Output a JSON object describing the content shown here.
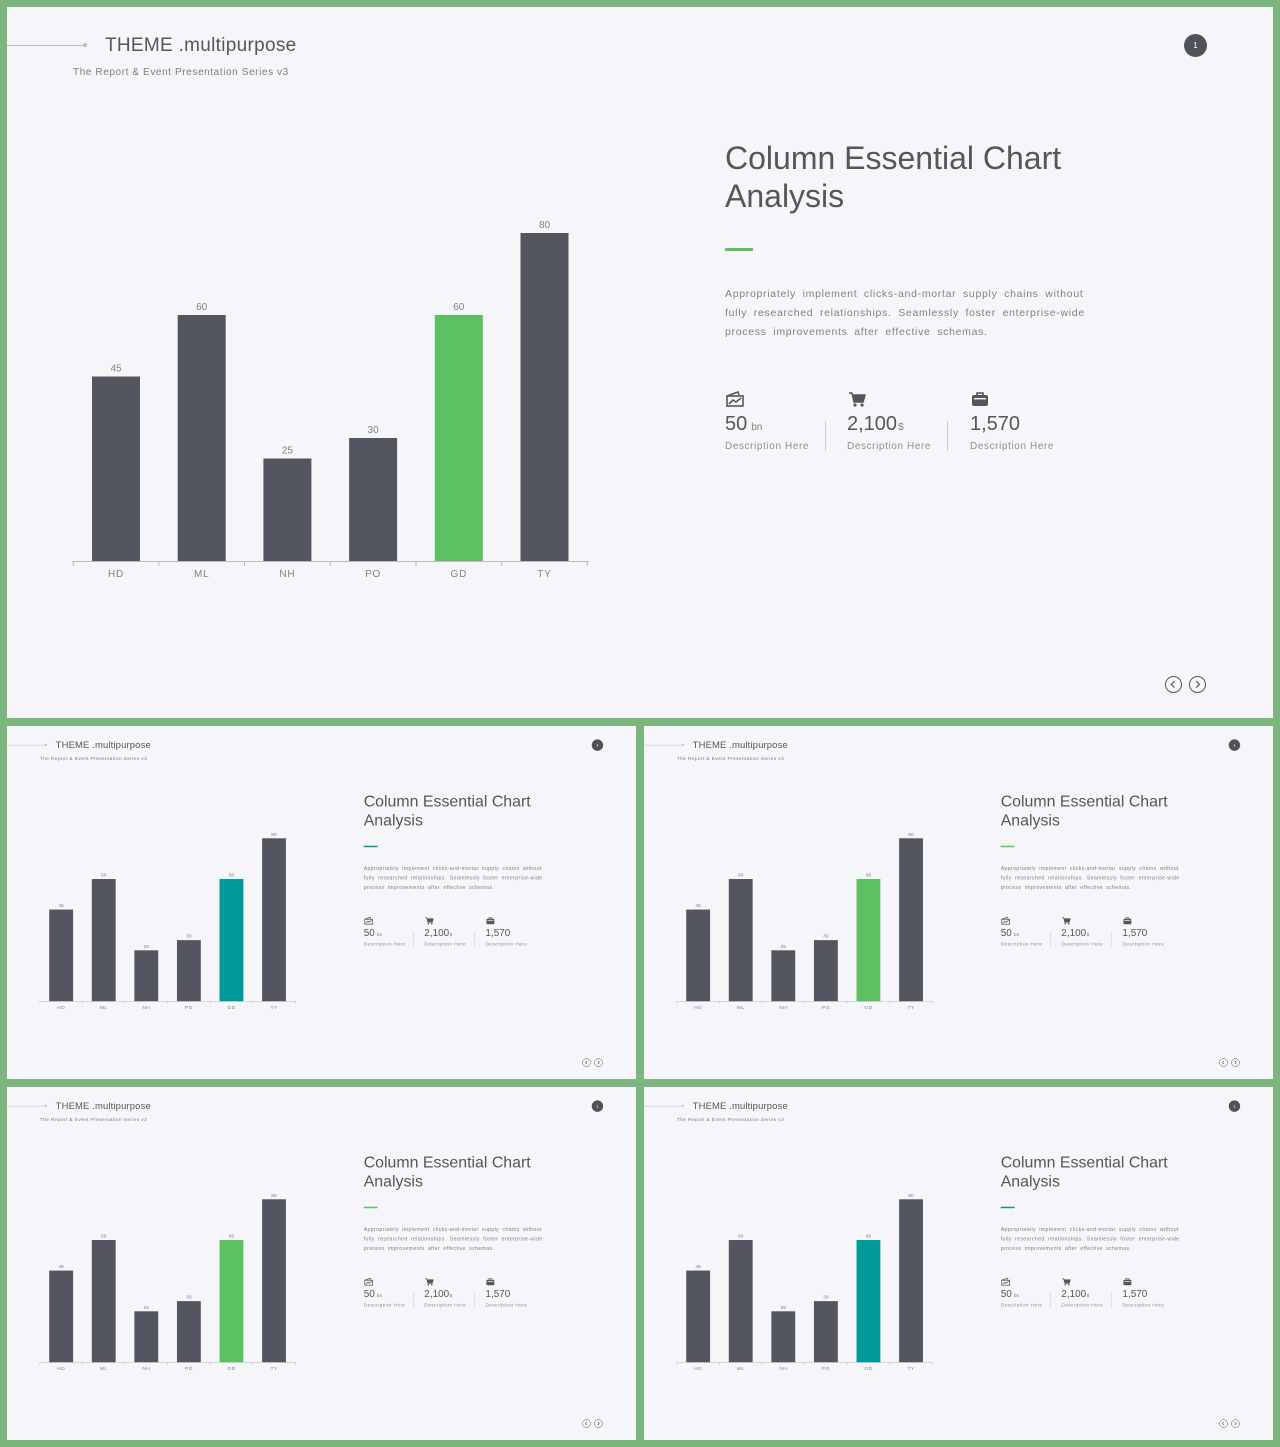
{
  "brand": {
    "title": "THEME .multipurpose",
    "subtitle": "The Report & Event Presentation Series v3"
  },
  "page_number": "1",
  "heading": "Column Essential Chart Analysis",
  "body": "Appropriately implement clicks-and-mortar supply chains without fully researched relationships. Seamlessly foster enterprise-wide process improvements after effective schemas.",
  "stats": [
    {
      "icon": "chart-card-icon",
      "value": "50",
      "unit": "bn",
      "description": "Description Here"
    },
    {
      "icon": "shopping-cart-icon",
      "value": "2,100",
      "unit": "$",
      "description": "Description Here"
    },
    {
      "icon": "briefcase-icon",
      "value": "1,570",
      "unit": "",
      "description": "Description Here"
    }
  ],
  "navigation": {
    "prev_icon": "chevron-left-icon",
    "next_icon": "chevron-right-icon"
  },
  "colors": {
    "background": "#7db57f",
    "slide": "#f6f6fa",
    "bar": "#53565f",
    "accent_green": "#5dc063",
    "accent_teal": "#00999a"
  },
  "slides": [
    {
      "id": "s0",
      "highlight_color": "#5dc063"
    },
    {
      "id": "s1",
      "highlight_color": "#00999a"
    },
    {
      "id": "s2",
      "highlight_color": "#5dc063"
    },
    {
      "id": "s3",
      "highlight_color": "#5dc063"
    },
    {
      "id": "s4",
      "highlight_color": "#00999a"
    }
  ],
  "chart_data": {
    "type": "bar",
    "categories": [
      "HD",
      "ML",
      "NH",
      "PO",
      "GD",
      "TY"
    ],
    "values": [
      45,
      60,
      25,
      30,
      60,
      80
    ],
    "highlight_category": "GD",
    "title": "",
    "xlabel": "",
    "ylabel": "",
    "ylim": [
      0,
      80
    ],
    "grid": false,
    "legend": "none"
  }
}
